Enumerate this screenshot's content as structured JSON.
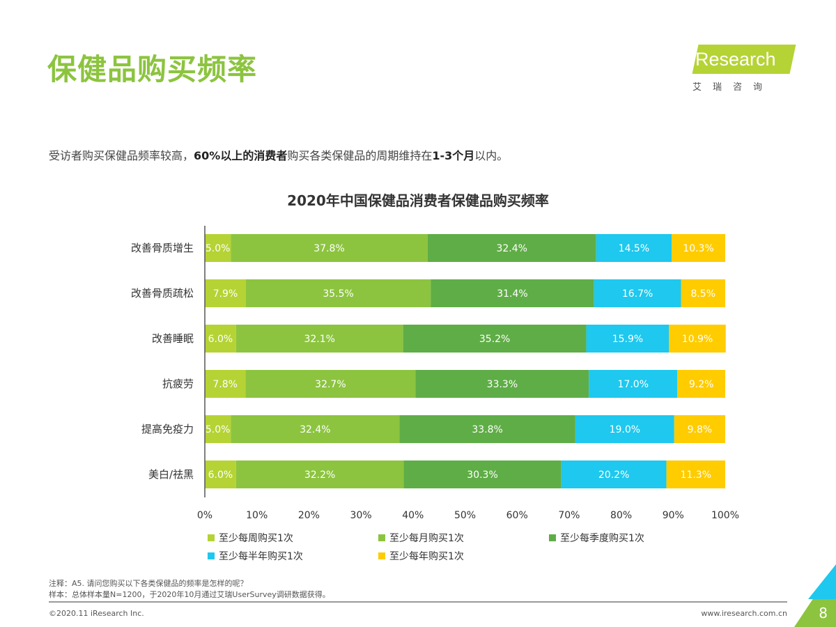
{
  "header": {
    "title": "保健品购买频率",
    "logo_text": "iResearch",
    "logo_cn": "艾瑞咨询"
  },
  "subtitle": {
    "part1": "受访者购买保健品频率较高，",
    "bold1": "60%以上的消费者",
    "part2": "购买各类保健品的周期维持在",
    "bold2": "1-3个月",
    "part3": "以内。"
  },
  "chart_data": {
    "type": "bar",
    "orientation": "horizontal",
    "stacked": "percent",
    "title": "2020年中国保健品消费者保健品购买频率",
    "categories": [
      "改善骨质增生",
      "改善骨质疏松",
      "改善睡眠",
      "抗疲劳",
      "提高免疫力",
      "美白/祛黑"
    ],
    "xlim": [
      0,
      100
    ],
    "xticks": [
      "0%",
      "10%",
      "20%",
      "30%",
      "40%",
      "50%",
      "60%",
      "70%",
      "80%",
      "90%",
      "100%"
    ],
    "legend_position": "bottom",
    "series": [
      {
        "name": "至少每周购买1次",
        "color": "#b5d334",
        "values": [
          5.0,
          7.9,
          6.0,
          7.8,
          5.0,
          6.0
        ]
      },
      {
        "name": "至少每月购买1次",
        "color": "#8cc43f",
        "values": [
          37.8,
          35.5,
          32.1,
          32.7,
          32.4,
          32.2
        ]
      },
      {
        "name": "至少每季度购买1次",
        "color": "#5fad46",
        "values": [
          32.4,
          31.4,
          35.2,
          33.3,
          33.8,
          30.3
        ]
      },
      {
        "name": "至少每半年购买1次",
        "color": "#1ec8ee",
        "values": [
          14.5,
          16.7,
          15.9,
          17.0,
          19.0,
          20.2
        ]
      },
      {
        "name": "至少每年购买1次",
        "color": "#ffcc00",
        "values": [
          10.3,
          8.5,
          10.9,
          9.2,
          9.8,
          11.3
        ]
      }
    ]
  },
  "footer": {
    "note": "注释：A5. 请问您购买以下各类保健品的频率是怎样的呢？",
    "sample": "样本：总体样本量N=1200，于2020年10月通过艾瑞UserSurvey调研数据获得。",
    "copyright": "©2020.11 iResearch Inc.",
    "url": "www.iresearch.com.cn",
    "page": "8"
  }
}
